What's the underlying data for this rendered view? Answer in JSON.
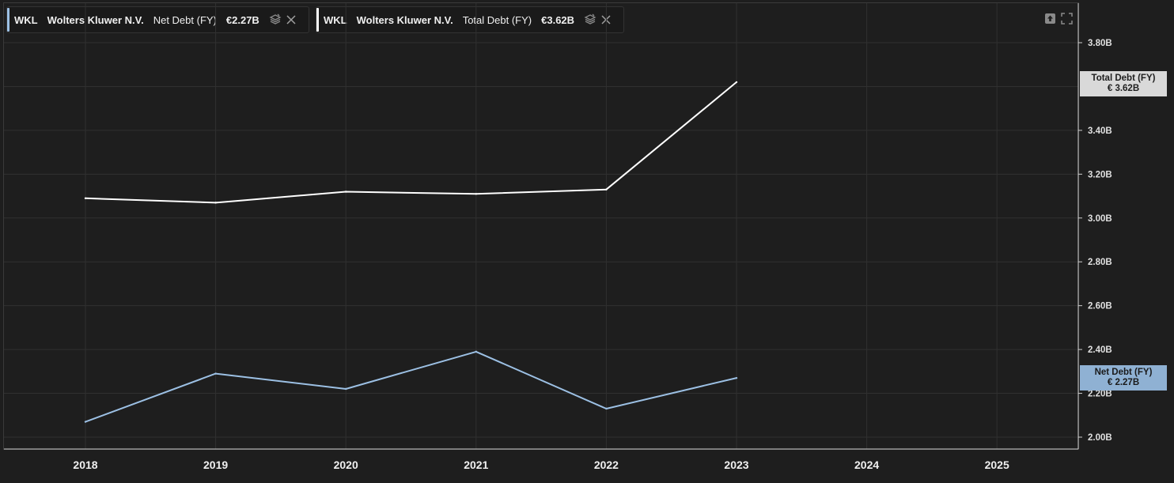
{
  "legend": [
    {
      "ticker": "WKL",
      "company": "Wolters Kluwer N.V.",
      "metric": "Net Debt (FY)",
      "value": "€2.27B",
      "color": "#9cc0e4",
      "icon": "stack-icon",
      "close_icon": "close-icon"
    },
    {
      "ticker": "WKL",
      "company": "Wolters Kluwer N.V.",
      "metric": "Total Debt (FY)",
      "value": "€3.62B",
      "color": "#ffffff",
      "icon": "stack-icon",
      "close_icon": "close-icon"
    }
  ],
  "toolbar_icons": [
    "upload-icon",
    "fullscreen-icon"
  ],
  "flags": {
    "total": {
      "label": "Total Debt (FY)",
      "value": "€ 3.62B"
    },
    "net": {
      "label": "Net Debt (FY)",
      "value": "€ 2.27B"
    }
  },
  "chart_data": {
    "type": "line",
    "x": [
      "2018",
      "2019",
      "2020",
      "2021",
      "2022",
      "2023",
      "2024",
      "2025"
    ],
    "series": [
      {
        "name": "Total Debt (FY)",
        "color": "#ffffff",
        "values": [
          3.09,
          3.07,
          3.12,
          3.11,
          3.13,
          3.62,
          null,
          null
        ]
      },
      {
        "name": "Net Debt (FY)",
        "color": "#9cc0e4",
        "values": [
          2.07,
          2.29,
          2.22,
          2.39,
          2.13,
          2.27,
          null,
          null
        ]
      }
    ],
    "yticks": [
      "3.80B",
      "3.40B",
      "3.20B",
      "3.00B",
      "2.80B",
      "2.60B",
      "2.40B",
      "2.20B",
      "2.00B"
    ],
    "ytick_values": [
      3.8,
      3.4,
      3.2,
      3.0,
      2.8,
      2.6,
      2.4,
      2.2,
      2.0
    ],
    "ylim": [
      2.0,
      3.8
    ],
    "grid": true,
    "colors": {
      "background": "#1e1e1e",
      "grid": "#303030",
      "axis": "#cfcfcf"
    }
  }
}
